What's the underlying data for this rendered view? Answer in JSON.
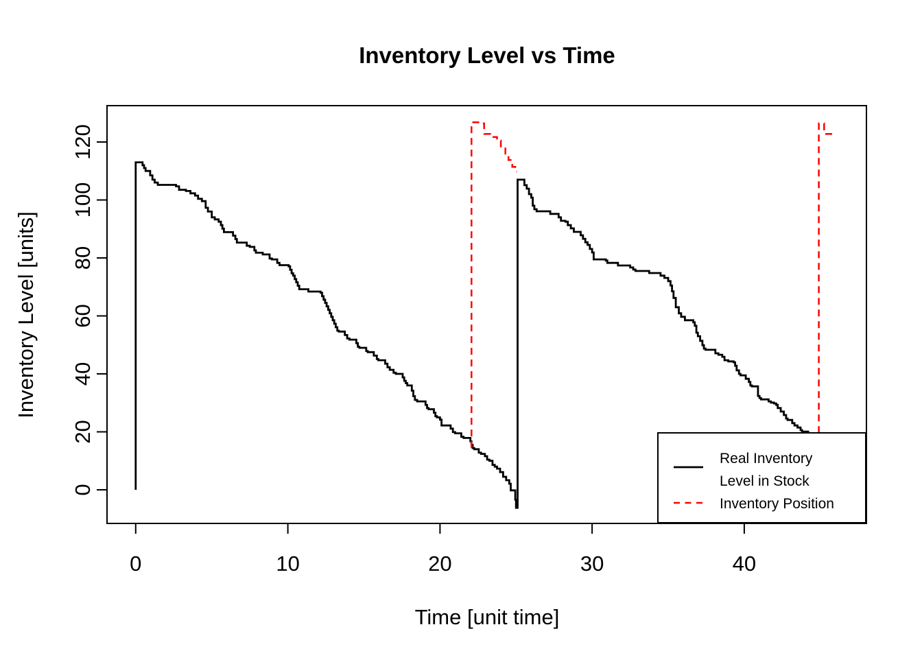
{
  "title": "Inventory Level vs Time",
  "x_axis": {
    "label": "Time [unit time]",
    "tick_labels": [
      "0",
      "10",
      "20",
      "30",
      "40"
    ]
  },
  "y_axis": {
    "label": "Inventory Level [units]",
    "tick_labels": [
      "0",
      "20",
      "40",
      "60",
      "80",
      "100",
      "120"
    ]
  },
  "legend": {
    "item1_lines": [
      "Real Inventory",
      "Level in Stock"
    ],
    "item2_lines": [
      "Inventory Position"
    ]
  },
  "colors": {
    "real_inventory_level": "#000000",
    "inventory_position": "#FF0000",
    "background": "#FFFFFF"
  },
  "chart_data": {
    "type": "line",
    "title": "Inventory Level vs Time",
    "xlabel": "Time [unit time]",
    "ylabel": "Inventory Level [units]",
    "x_ticks": [
      0,
      10,
      20,
      30,
      40
    ],
    "y_ticks": [
      0,
      20,
      40,
      60,
      80,
      100,
      120
    ],
    "x_domain": [
      -1.885,
      48.03
    ],
    "y_domain": [
      -11.6,
      132.54
    ],
    "grid": false,
    "legend_position": "bottom-right",
    "series": [
      {
        "name": "Real Inventory Level in Stock",
        "color": "#000000",
        "line_style": "solid",
        "step": true,
        "segments": [
          [
            [
              0,
              0
            ],
            [
              0,
              113
            ],
            [
              0.45,
              112
            ],
            [
              0.55,
              111
            ],
            [
              0.65,
              110
            ],
            [
              0.95,
              108.5
            ],
            [
              1.1,
              107
            ],
            [
              1.25,
              106
            ],
            [
              1.45,
              105.2
            ],
            [
              2.65,
              104.7
            ],
            [
              2.85,
              103.5
            ],
            [
              3.3,
              103.1
            ],
            [
              3.6,
              102.3
            ],
            [
              3.9,
              101.5
            ],
            [
              4.1,
              100.4
            ],
            [
              4.35,
              99.6
            ],
            [
              4.6,
              97.3
            ],
            [
              4.75,
              96
            ],
            [
              5,
              94
            ],
            [
              5.2,
              93.3
            ],
            [
              5.45,
              92.5
            ],
            [
              5.6,
              91.3
            ],
            [
              5.7,
              90.1
            ],
            [
              5.8,
              88.9
            ],
            [
              6.4,
              87.7
            ],
            [
              6.55,
              86.5
            ],
            [
              6.65,
              85.3
            ],
            [
              7.3,
              84.2
            ],
            [
              7.5,
              83.8
            ],
            [
              7.8,
              82.6
            ],
            [
              7.9,
              81.8
            ],
            [
              8.35,
              81.2
            ],
            [
              8.8,
              79.8
            ],
            [
              8.95,
              79.5
            ],
            [
              9.3,
              78.3
            ],
            [
              9.45,
              77.5
            ],
            [
              10.05,
              77.1
            ],
            [
              10.15,
              75.9
            ],
            [
              10.25,
              74.7
            ],
            [
              10.35,
              73.9
            ],
            [
              10.45,
              72.7
            ],
            [
              10.55,
              71.6
            ],
            [
              10.65,
              70.4
            ],
            [
              10.75,
              69.2
            ],
            [
              11.35,
              68.4
            ],
            [
              12.15,
              68
            ],
            [
              12.25,
              66.8
            ],
            [
              12.35,
              65.6
            ],
            [
              12.45,
              64.5
            ],
            [
              12.55,
              63.3
            ],
            [
              12.65,
              62.1
            ],
            [
              12.75,
              60.9
            ],
            [
              12.85,
              59.7
            ],
            [
              12.95,
              58.5
            ],
            [
              13.05,
              57.3
            ],
            [
              13.15,
              56.1
            ],
            [
              13.25,
              54.9
            ],
            [
              13.35,
              54.6
            ],
            [
              13.75,
              53.4
            ],
            [
              13.9,
              52.2
            ],
            [
              14.05,
              51.8
            ],
            [
              14.5,
              50.6
            ],
            [
              14.6,
              49.4
            ],
            [
              14.7,
              49
            ],
            [
              15.15,
              47.9
            ],
            [
              15.25,
              47.5
            ],
            [
              15.65,
              46.3
            ],
            [
              15.85,
              45.1
            ],
            [
              15.95,
              44.7
            ],
            [
              16.4,
              43.5
            ],
            [
              16.55,
              42.3
            ],
            [
              16.7,
              41.4
            ],
            [
              16.95,
              40.4
            ],
            [
              17.1,
              40
            ],
            [
              17.55,
              38.8
            ],
            [
              17.65,
              37.6
            ],
            [
              17.75,
              36.8
            ],
            [
              17.85,
              36
            ],
            [
              18.15,
              34.2
            ],
            [
              18.25,
              32.3
            ],
            [
              18.35,
              31
            ],
            [
              18.5,
              30.5
            ],
            [
              19.05,
              29.3
            ],
            [
              19.15,
              28.2
            ],
            [
              19.25,
              27.8
            ],
            [
              19.6,
              26.6
            ],
            [
              19.7,
              25.4
            ],
            [
              19.8,
              25
            ],
            [
              20,
              24.2
            ],
            [
              20.1,
              22.2
            ],
            [
              20.7,
              21.1
            ],
            [
              20.85,
              19.9
            ],
            [
              21,
              19.5
            ],
            [
              21.4,
              18.3
            ],
            [
              21.55,
              17.9
            ],
            [
              22,
              16.7
            ],
            [
              22.07,
              15.5
            ],
            [
              22.15,
              14.4
            ],
            [
              22.25,
              14
            ],
            [
              22.55,
              12.8
            ],
            [
              22.7,
              12.4
            ],
            [
              22.95,
              11.6
            ],
            [
              23.1,
              10.4
            ],
            [
              23.25,
              10
            ],
            [
              23.45,
              8.6
            ],
            [
              23.6,
              8
            ],
            [
              23.75,
              7.3
            ],
            [
              23.95,
              6.1
            ],
            [
              24.15,
              4.5
            ],
            [
              24.35,
              3.3
            ],
            [
              24.55,
              2.1
            ],
            [
              24.65,
              -0.2
            ],
            [
              24.95,
              -3.4
            ],
            [
              25,
              -6.2
            ],
            [
              25.1,
              107
            ],
            [
              25.55,
              105.1
            ],
            [
              25.7,
              103.9
            ],
            [
              25.85,
              102
            ],
            [
              26,
              100.8
            ],
            [
              26.1,
              98
            ],
            [
              26.2,
              96.8
            ],
            [
              26.35,
              96.1
            ],
            [
              27.25,
              95.2
            ],
            [
              27.8,
              94
            ],
            [
              27.95,
              92.8
            ],
            [
              28.25,
              92.5
            ],
            [
              28.4,
              91.3
            ],
            [
              28.6,
              90.2
            ],
            [
              28.8,
              89
            ],
            [
              29.25,
              87.8
            ],
            [
              29.4,
              86.6
            ],
            [
              29.55,
              85.4
            ],
            [
              29.7,
              84.5
            ],
            [
              29.85,
              83.1
            ],
            [
              30,
              81.9
            ],
            [
              30.1,
              79.5
            ],
            [
              30.9,
              79.1
            ],
            [
              31,
              78.3
            ],
            [
              31.7,
              77.4
            ],
            [
              32.5,
              76.7
            ],
            [
              32.7,
              76
            ],
            [
              32.85,
              75.5
            ],
            [
              33.75,
              74.8
            ],
            [
              34.5,
              73.9
            ],
            [
              34.75,
              73.1
            ],
            [
              35,
              72
            ],
            [
              35.15,
              70.5
            ],
            [
              35.25,
              68.5
            ],
            [
              35.35,
              66.2
            ],
            [
              35.5,
              63
            ],
            [
              35.7,
              60.9
            ],
            [
              35.85,
              59.7
            ],
            [
              36.1,
              58.5
            ],
            [
              36.65,
              57.8
            ],
            [
              36.75,
              56.6
            ],
            [
              36.85,
              54.2
            ],
            [
              36.95,
              53
            ],
            [
              37.1,
              51.4
            ],
            [
              37.25,
              49.9
            ],
            [
              37.35,
              48.7
            ],
            [
              37.45,
              48.3
            ],
            [
              38.1,
              47.1
            ],
            [
              38.3,
              46.6
            ],
            [
              38.55,
              45.9
            ],
            [
              38.7,
              44.7
            ],
            [
              38.95,
              44.3
            ],
            [
              39.3,
              44
            ],
            [
              39.4,
              42.8
            ],
            [
              39.5,
              41.2
            ],
            [
              39.65,
              40
            ],
            [
              39.75,
              39.5
            ],
            [
              40.1,
              38.3
            ],
            [
              40.3,
              37.2
            ],
            [
              40.4,
              36
            ],
            [
              40.5,
              35.7
            ],
            [
              40.9,
              32.4
            ],
            [
              41,
              31.7
            ],
            [
              41.1,
              31.2
            ],
            [
              41.6,
              30.5
            ],
            [
              41.75,
              30.1
            ],
            [
              41.95,
              29.8
            ],
            [
              42.1,
              29.3
            ],
            [
              42.2,
              28.2
            ],
            [
              42.4,
              27
            ],
            [
              42.6,
              25.8
            ],
            [
              42.75,
              24.6
            ],
            [
              42.85,
              24.1
            ],
            [
              43.15,
              23
            ],
            [
              43.3,
              22.2
            ],
            [
              43.5,
              21.5
            ],
            [
              43.7,
              20.6
            ],
            [
              43.8,
              20.1
            ],
            [
              44.2,
              19.5
            ]
          ]
        ]
      },
      {
        "name": "Inventory Position",
        "color": "#FF0000",
        "line_style": "dashed",
        "step": true,
        "segments": [
          [
            [
              22.07,
              14.4
            ],
            [
              22.07,
              126.8
            ],
            [
              22.6,
              126.4
            ],
            [
              22.9,
              122.8
            ],
            [
              23.3,
              121.7
            ],
            [
              23.75,
              120.5
            ],
            [
              24,
              118.1
            ],
            [
              24.3,
              115.3
            ],
            [
              24.5,
              113.8
            ],
            [
              24.75,
              111.4
            ],
            [
              24.95,
              109.8
            ],
            [
              25.05,
              109.8
            ]
          ],
          [
            [
              44.9,
              19.6
            ],
            [
              44.9,
              126.4
            ],
            [
              45.25,
              122.8
            ],
            [
              45.85,
              122.1
            ],
            [
              45.95,
              122.1
            ]
          ]
        ]
      }
    ]
  }
}
